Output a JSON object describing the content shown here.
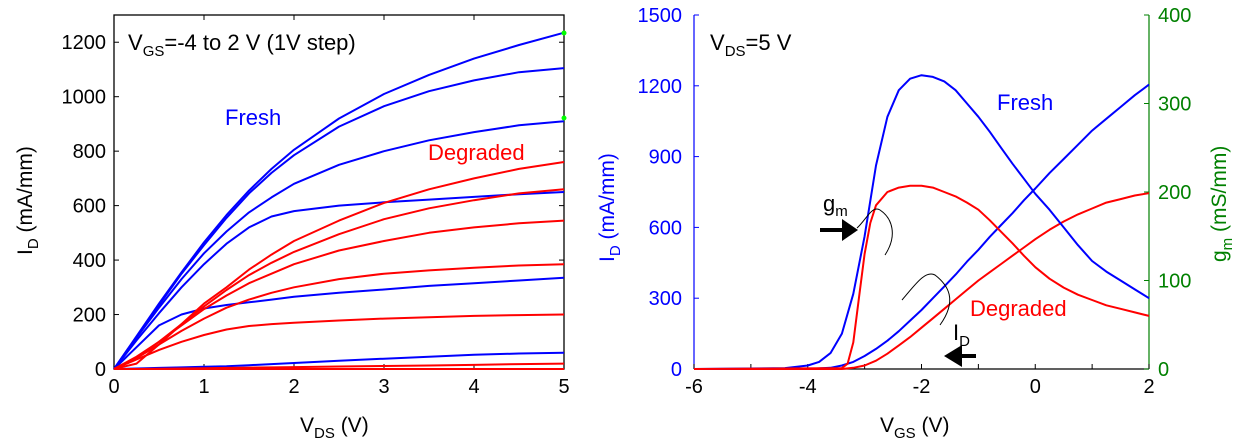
{
  "colors": {
    "fresh": "#0000ff",
    "degraded": "#ff0000",
    "gm_axis": "#008000",
    "id_axis": "#0000ff",
    "text": "#000000",
    "marker": "#00ff00"
  },
  "chart_data": [
    {
      "type": "line",
      "name": "output-characteristics",
      "xlabel": {
        "main": "V",
        "sub": "DS",
        "unit": " (V)"
      },
      "ylabel": {
        "main": "I",
        "sub": "D",
        "unit": " (mA/mm)"
      },
      "xlim": [
        0,
        5
      ],
      "ylim": [
        0,
        1300
      ],
      "xticks": [
        0,
        1,
        2,
        3,
        4,
        5
      ],
      "yticks": [
        0,
        200,
        400,
        600,
        800,
        1000,
        1200
      ],
      "xtick_labels": [
        "0",
        "1",
        "2",
        "3",
        "4",
        "5"
      ],
      "ytick_labels": [
        "0",
        "200",
        "400",
        "600",
        "800",
        "1000",
        "1200"
      ],
      "annotation": {
        "main": "V",
        "sub": "GS",
        "rest": "=-4 to 2 V (1V step)"
      },
      "labels": {
        "fresh": "Fresh",
        "degraded": "Degraded"
      },
      "x": [
        0,
        0.25,
        0.5,
        0.75,
        1,
        1.25,
        1.5,
        1.75,
        2,
        2.5,
        3,
        3.5,
        4,
        4.5,
        5
      ],
      "series": [
        {
          "name": "Fresh VGS=2",
          "group": "fresh",
          "values": [
            0,
            120,
            240,
            355,
            465,
            565,
            655,
            735,
            805,
            920,
            1010,
            1080,
            1140,
            1190,
            1235
          ]
        },
        {
          "name": "Fresh VGS=1",
          "group": "fresh",
          "values": [
            0,
            118,
            235,
            350,
            455,
            555,
            645,
            720,
            785,
            890,
            965,
            1020,
            1060,
            1090,
            1105
          ]
        },
        {
          "name": "Fresh VGS=0",
          "group": "fresh",
          "values": [
            0,
            115,
            225,
            330,
            425,
            505,
            575,
            630,
            680,
            750,
            800,
            840,
            870,
            895,
            910
          ]
        },
        {
          "name": "Fresh VGS=-1",
          "group": "fresh",
          "values": [
            0,
            105,
            205,
            300,
            385,
            460,
            520,
            560,
            580,
            600,
            612,
            622,
            632,
            642,
            650
          ]
        },
        {
          "name": "Fresh VGS=-2",
          "group": "fresh",
          "values": [
            0,
            80,
            160,
            200,
            222,
            235,
            245,
            255,
            265,
            280,
            292,
            305,
            315,
            325,
            335
          ]
        },
        {
          "name": "Fresh VGS=-3",
          "group": "fresh",
          "values": [
            0,
            2,
            4,
            6,
            8,
            10,
            14,
            18,
            22,
            30,
            38,
            45,
            52,
            57,
            60
          ]
        },
        {
          "name": "Fresh VGS=-4",
          "group": "fresh",
          "values": [
            0,
            0,
            0,
            0,
            0,
            0,
            0,
            0,
            0,
            0,
            0,
            0,
            0,
            0,
            0
          ]
        },
        {
          "name": "Degraded VGS=2",
          "group": "degraded",
          "values": [
            0,
            20,
            90,
            165,
            240,
            300,
            365,
            420,
            470,
            545,
            610,
            660,
            700,
            735,
            760
          ]
        },
        {
          "name": "Degraded VGS=1",
          "group": "degraded",
          "values": [
            0,
            40,
            100,
            165,
            230,
            290,
            345,
            390,
            430,
            495,
            550,
            590,
            620,
            645,
            660
          ]
        },
        {
          "name": "Degraded VGS=0",
          "group": "degraded",
          "values": [
            0,
            45,
            100,
            160,
            220,
            270,
            315,
            350,
            385,
            435,
            470,
            500,
            520,
            535,
            545
          ]
        },
        {
          "name": "Degraded VGS=-1",
          "group": "degraded",
          "values": [
            0,
            40,
            90,
            140,
            185,
            225,
            255,
            280,
            300,
            330,
            350,
            362,
            372,
            380,
            385
          ]
        },
        {
          "name": "Degraded VGS=-2",
          "group": "degraded",
          "values": [
            0,
            35,
            70,
            100,
            125,
            145,
            158,
            165,
            170,
            178,
            185,
            190,
            195,
            198,
            200
          ]
        },
        {
          "name": "Degraded VGS=-3",
          "group": "degraded",
          "values": [
            0,
            0,
            1,
            2,
            3,
            4,
            5,
            6,
            7,
            9,
            11,
            13,
            15,
            18,
            20
          ]
        },
        {
          "name": "Degraded VGS=-4",
          "group": "degraded",
          "values": [
            0,
            0,
            0,
            0,
            0,
            0,
            0,
            0,
            0,
            0,
            0,
            0,
            0,
            0,
            0
          ]
        }
      ]
    },
    {
      "type": "line",
      "name": "transfer-characteristics",
      "xlabel": {
        "main": "V",
        "sub": "GS",
        "unit": " (V)"
      },
      "ylabel_left": {
        "main": "I",
        "sub": "D",
        "unit": " (mA/mm)"
      },
      "ylabel_right": {
        "main": "g",
        "sub": "m",
        "unit": " (mS/mm)"
      },
      "xlim": [
        -6,
        2
      ],
      "ylim_left": [
        0,
        1500
      ],
      "ylim_right": [
        0,
        400
      ],
      "xticks": [
        -6,
        -4,
        -2,
        0,
        2
      ],
      "xtick_labels": [
        "-6",
        "-4",
        "-2",
        "0",
        "2"
      ],
      "yticks_left": [
        0,
        300,
        600,
        900,
        1200,
        1500
      ],
      "ytick_labels_left": [
        "0",
        "300",
        "600",
        "900",
        "1200",
        "1500"
      ],
      "yticks_right": [
        0,
        100,
        200,
        300,
        400
      ],
      "ytick_labels_right": [
        "0",
        "100",
        "200",
        "300",
        "400"
      ],
      "annotation": {
        "main": "V",
        "sub": "DS",
        "rest": "=5 V"
      },
      "labels": {
        "fresh": "Fresh",
        "degraded": "Degraded",
        "gm": {
          "main": "g",
          "sub": "m"
        },
        "id": {
          "main": "I",
          "sub": "D"
        }
      },
      "series": [
        {
          "name": "Fresh ID",
          "group": "fresh",
          "axis": "left",
          "x": [
            -6,
            -4,
            -3.6,
            -3.4,
            -3.2,
            -3.0,
            -2.8,
            -2.6,
            -2.4,
            -2.2,
            -2.0,
            -1.8,
            -1.6,
            -1.4,
            -1.2,
            -1.0,
            -0.8,
            -0.6,
            -0.4,
            -0.2,
            0,
            0.25,
            0.5,
            0.75,
            1.0,
            1.25,
            1.5,
            1.75,
            2.0
          ],
          "values": [
            0,
            0,
            5,
            15,
            30,
            55,
            85,
            120,
            160,
            205,
            250,
            300,
            350,
            400,
            455,
            505,
            560,
            610,
            660,
            715,
            765,
            830,
            890,
            950,
            1010,
            1060,
            1110,
            1160,
            1205
          ]
        },
        {
          "name": "Degraded ID",
          "group": "degraded",
          "axis": "left",
          "x": [
            -6,
            -3.4,
            -3.2,
            -3.0,
            -2.8,
            -2.6,
            -2.4,
            -2.2,
            -2.0,
            -1.8,
            -1.6,
            -1.4,
            -1.2,
            -1.0,
            -0.8,
            -0.6,
            -0.4,
            -0.2,
            0,
            0.25,
            0.5,
            0.75,
            1.0,
            1.25,
            1.5,
            1.75,
            2.0
          ],
          "values": [
            0,
            0,
            5,
            15,
            35,
            65,
            100,
            135,
            175,
            215,
            255,
            295,
            335,
            375,
            410,
            445,
            480,
            515,
            550,
            590,
            625,
            655,
            680,
            705,
            720,
            735,
            745
          ]
        },
        {
          "name": "Fresh gm",
          "group": "fresh",
          "axis": "right",
          "x": [
            -6,
            -4.4,
            -4.0,
            -3.8,
            -3.6,
            -3.4,
            -3.2,
            -3.0,
            -2.8,
            -2.6,
            -2.4,
            -2.2,
            -2.0,
            -1.8,
            -1.6,
            -1.4,
            -1.2,
            -1.0,
            -0.8,
            -0.6,
            -0.4,
            -0.2,
            0,
            0.25,
            0.5,
            0.75,
            1.0,
            1.25,
            1.5,
            1.75,
            2.0
          ],
          "values": [
            0,
            1,
            4,
            8,
            18,
            40,
            85,
            150,
            230,
            285,
            315,
            328,
            332,
            330,
            325,
            315,
            300,
            285,
            268,
            250,
            232,
            215,
            198,
            180,
            160,
            140,
            122,
            110,
            100,
            90,
            80
          ]
        },
        {
          "name": "Degraded gm",
          "group": "degraded",
          "axis": "right",
          "x": [
            -6,
            -3.4,
            -3.3,
            -3.2,
            -3.1,
            -3.0,
            -2.9,
            -2.8,
            -2.6,
            -2.4,
            -2.2,
            -2.0,
            -1.8,
            -1.6,
            -1.4,
            -1.2,
            -1.0,
            -0.8,
            -0.6,
            -0.4,
            -0.2,
            0,
            0.25,
            0.5,
            0.75,
            1.0,
            1.25,
            1.5,
            1.75,
            2.0
          ],
          "values": [
            0,
            1,
            6,
            30,
            80,
            130,
            165,
            185,
            200,
            205,
            207,
            207,
            205,
            200,
            195,
            188,
            180,
            168,
            155,
            142,
            128,
            115,
            102,
            92,
            84,
            78,
            72,
            68,
            64,
            60
          ]
        }
      ]
    }
  ]
}
